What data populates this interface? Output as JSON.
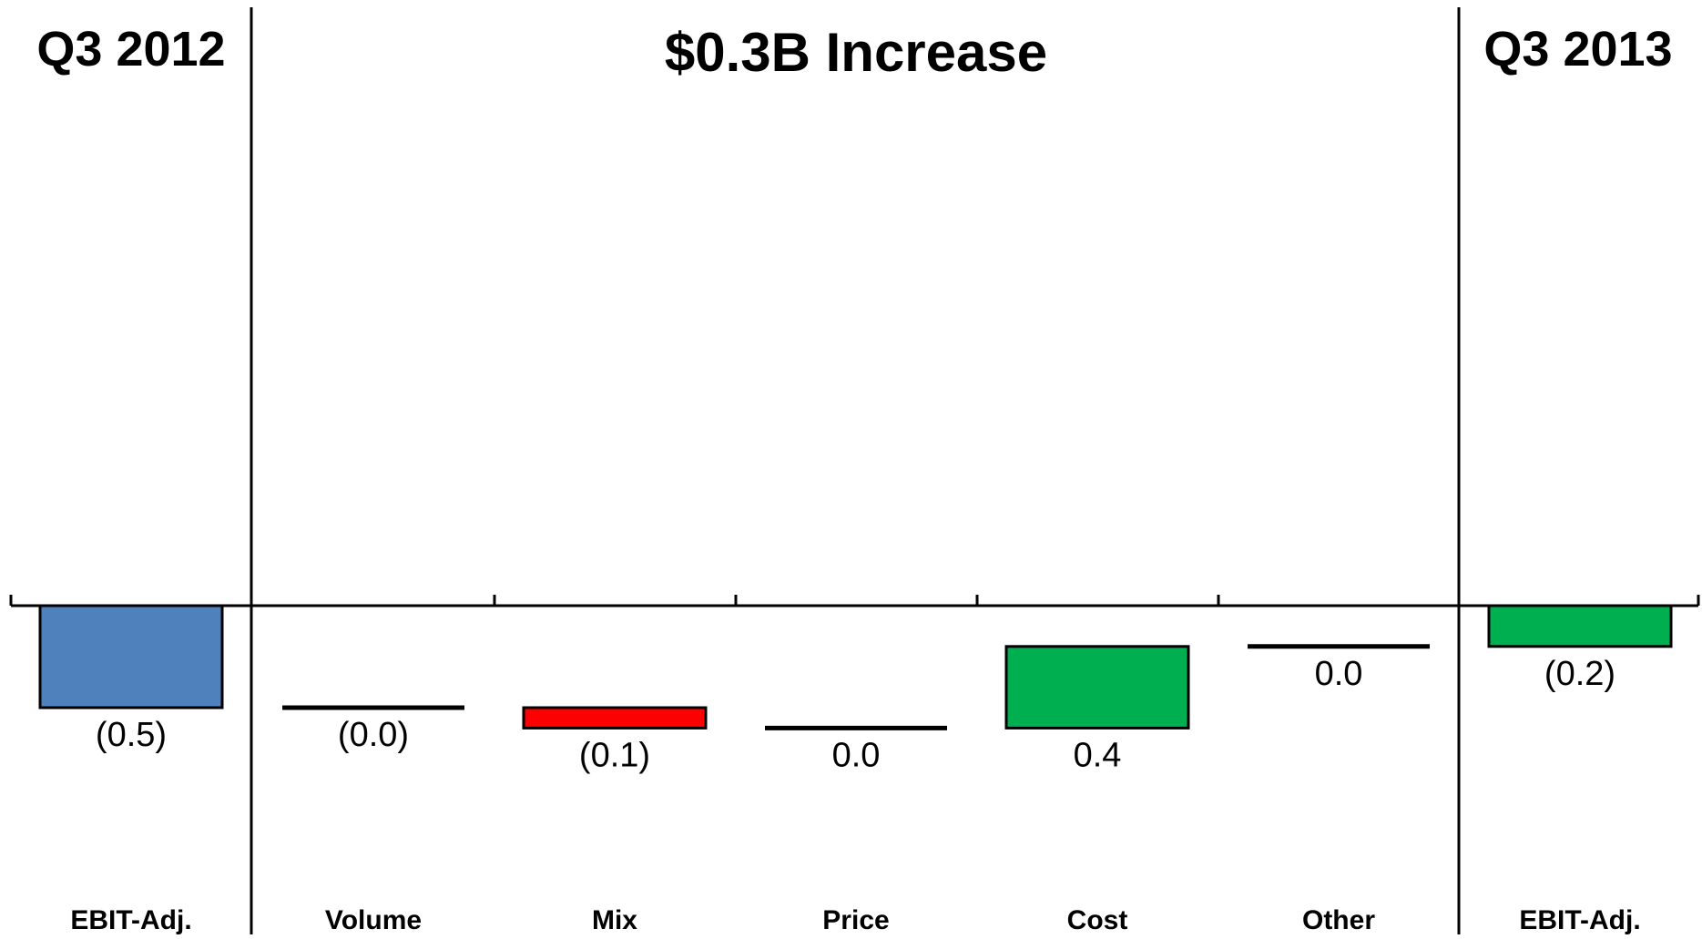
{
  "chart_data": {
    "type": "bar",
    "title": "$0.3B Increase",
    "left_header": "Q3 2012",
    "right_header": "Q3 2013",
    "categories": [
      "EBIT-Adj.",
      "Volume",
      "Mix",
      "Price",
      "Cost",
      "Other",
      "EBIT-Adj."
    ],
    "values": [
      -0.5,
      0.0,
      -0.1,
      0.0,
      0.4,
      0.0,
      -0.2
    ],
    "data_labels": [
      "(0.5)",
      "(0.0)",
      "(0.1)",
      "0.0",
      "0.4",
      "0.0",
      "(0.2)"
    ],
    "bar_kinds": [
      "total",
      "delta",
      "delta",
      "delta",
      "delta",
      "delta",
      "total"
    ],
    "bar_starts": [
      0,
      -0.5,
      -0.5,
      -0.6,
      -0.6,
      -0.2,
      0
    ],
    "bar_ends": [
      -0.5,
      -0.5,
      -0.6,
      -0.6,
      -0.2,
      -0.2,
      -0.2
    ],
    "colors": {
      "start_total": "#4F81BD",
      "end_total": "#00B050",
      "increase": "#00B050",
      "decrease": "#FF0000",
      "outline": "#000000",
      "axis": "#000000"
    },
    "ylim": [
      -1.6,
      2.95
    ],
    "grid": false,
    "legend": "none"
  }
}
